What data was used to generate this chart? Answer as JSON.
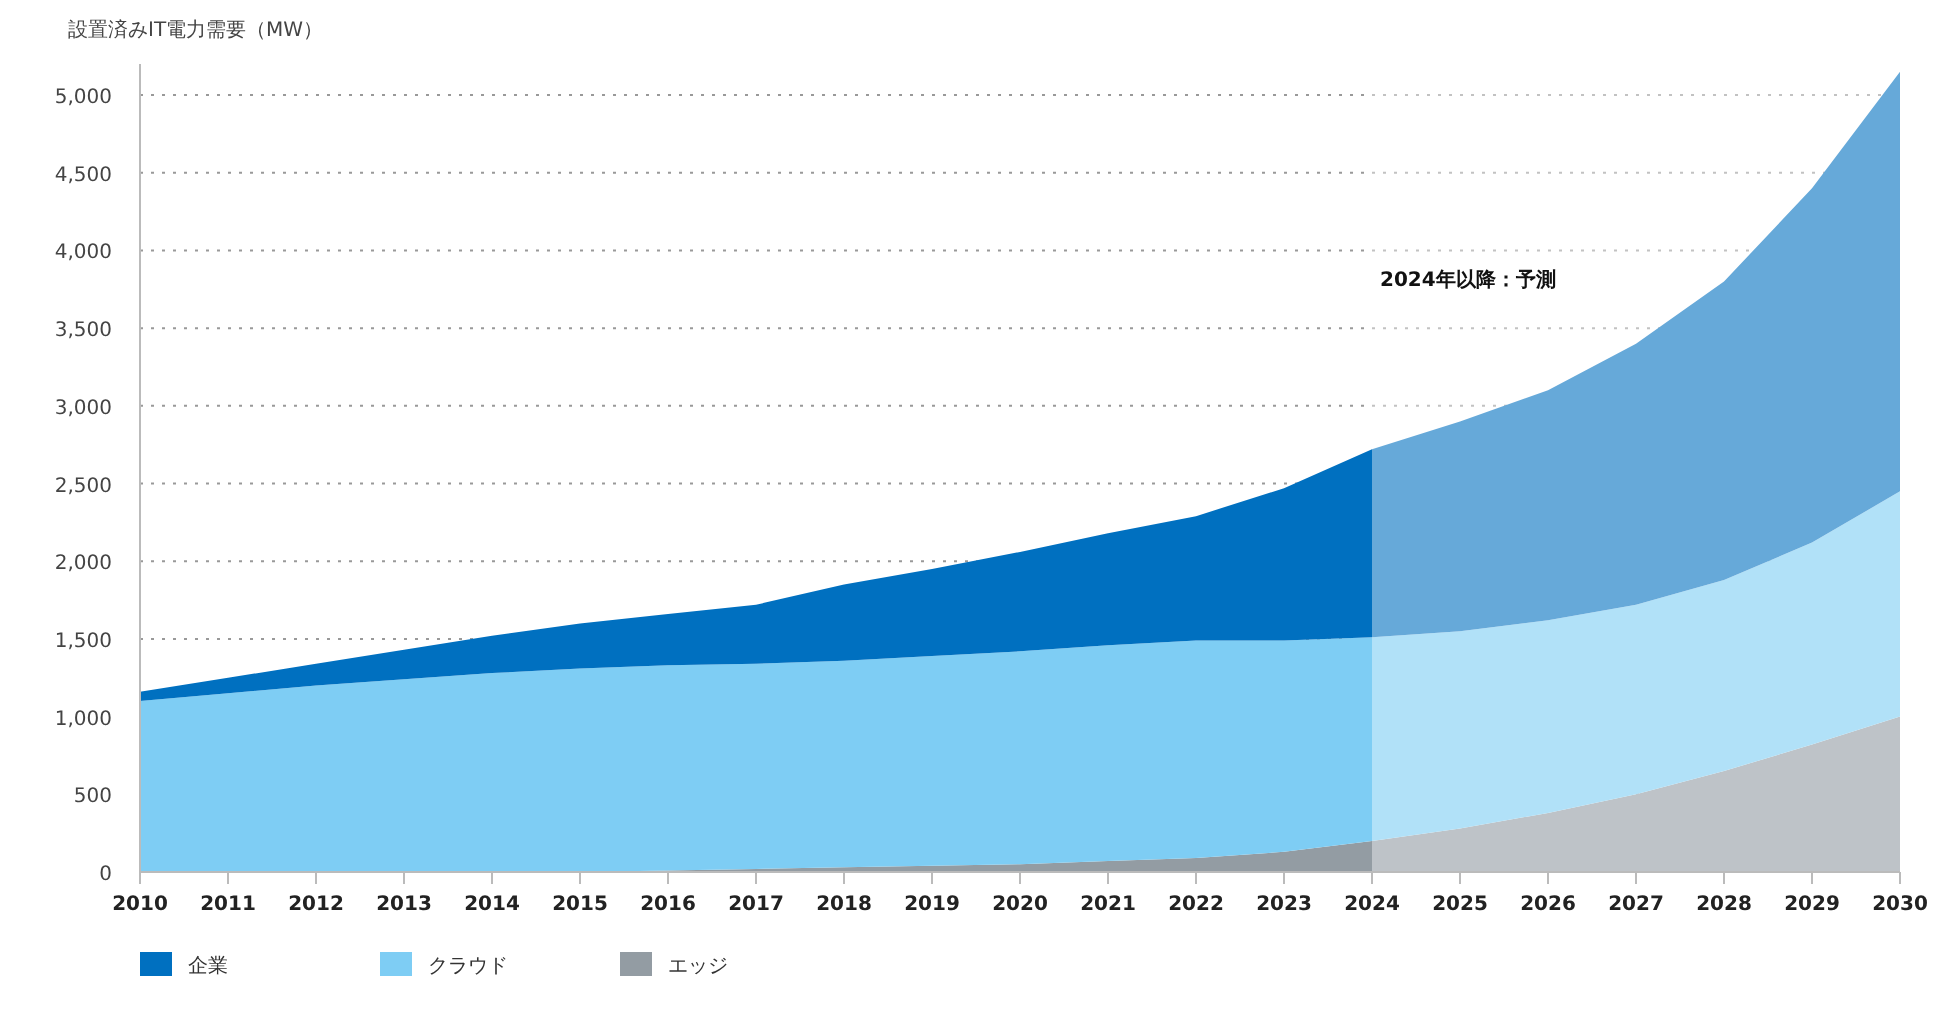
{
  "chart_data": {
    "type": "area",
    "stacked": true,
    "ylabel": "設置済みIT電力需要（MW）",
    "x": [
      2010,
      2011,
      2012,
      2013,
      2014,
      2015,
      2016,
      2017,
      2018,
      2019,
      2020,
      2021,
      2022,
      2023,
      2024,
      2025,
      2026,
      2027,
      2028,
      2029,
      2030
    ],
    "series": [
      {
        "name": "エッジ",
        "color": "#939ca3",
        "values": [
          0,
          0,
          0,
          0,
          0,
          0,
          10,
          20,
          30,
          40,
          50,
          70,
          90,
          130,
          200,
          280,
          380,
          500,
          650,
          820,
          1000
        ]
      },
      {
        "name": "クラウド",
        "color": "#7ecdf4",
        "values": [
          1100,
          1150,
          1200,
          1240,
          1280,
          1310,
          1320,
          1320,
          1330,
          1350,
          1370,
          1390,
          1400,
          1360,
          1310,
          1270,
          1240,
          1220,
          1230,
          1300,
          1450
        ]
      },
      {
        "name": "企業",
        "color": "#0070c0",
        "values": [
          60,
          100,
          140,
          190,
          240,
          290,
          330,
          380,
          490,
          560,
          640,
          720,
          800,
          980,
          1210,
          1350,
          1480,
          1680,
          1920,
          2280,
          2700
        ]
      }
    ],
    "xlim": [
      2010,
      2030
    ],
    "xticks": [
      2010,
      2011,
      2012,
      2013,
      2014,
      2015,
      2016,
      2017,
      2018,
      2019,
      2020,
      2021,
      2022,
      2023,
      2024,
      2025,
      2026,
      2027,
      2028,
      2029,
      2030
    ],
    "ylim": [
      0,
      5200
    ],
    "yticks": [
      0,
      500,
      {
        "value": 1000,
        "label": "1,000"
      },
      {
        "value": 1500,
        "label": "1,500"
      },
      {
        "value": 2000,
        "label": "2,000"
      },
      {
        "value": 2500,
        "label": "2,500"
      },
      {
        "value": 3000,
        "label": "3,000"
      },
      {
        "value": 3500,
        "label": "3,500"
      },
      {
        "value": 4000,
        "label": "4,000"
      },
      {
        "value": 4500,
        "label": "4,500"
      },
      {
        "value": 5000,
        "label": "5,000"
      }
    ],
    "grid": "y",
    "legend": "bottom",
    "bands": [
      {
        "axis": "x",
        "from": 2024,
        "to": 2030,
        "label": "2024年以降：予測",
        "color": "#ffffff"
      }
    ]
  }
}
